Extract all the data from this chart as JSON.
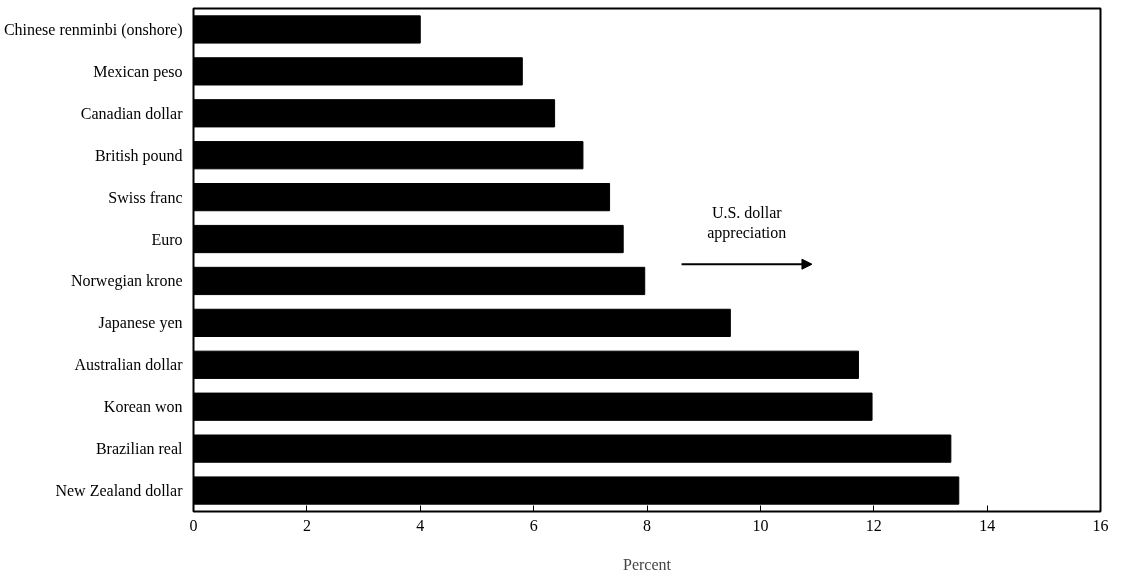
{
  "chart_data": {
    "type": "bar",
    "orientation": "horizontal",
    "xlabel": "Percent",
    "categories": [
      "Chinese renminbi (onshore)",
      "Mexican peso",
      "Canadian dollar",
      "British pound",
      "Swiss franc",
      "Euro",
      "Norwegian krone",
      "Japanese yen",
      "Australian dollar",
      "Korean won",
      "Brazilian real",
      "New Zealand dollar"
    ],
    "values": [
      4.0,
      5.8,
      6.37,
      6.87,
      7.34,
      7.58,
      7.96,
      9.47,
      11.73,
      11.97,
      13.36,
      13.5
    ],
    "color": "#000000",
    "xlim": [
      0,
      16
    ],
    "xticks": [
      0,
      2,
      4,
      6,
      8,
      10,
      12,
      14,
      16
    ],
    "grid": false,
    "annotations": [
      "U.S. dollar\nappreciation"
    ]
  }
}
